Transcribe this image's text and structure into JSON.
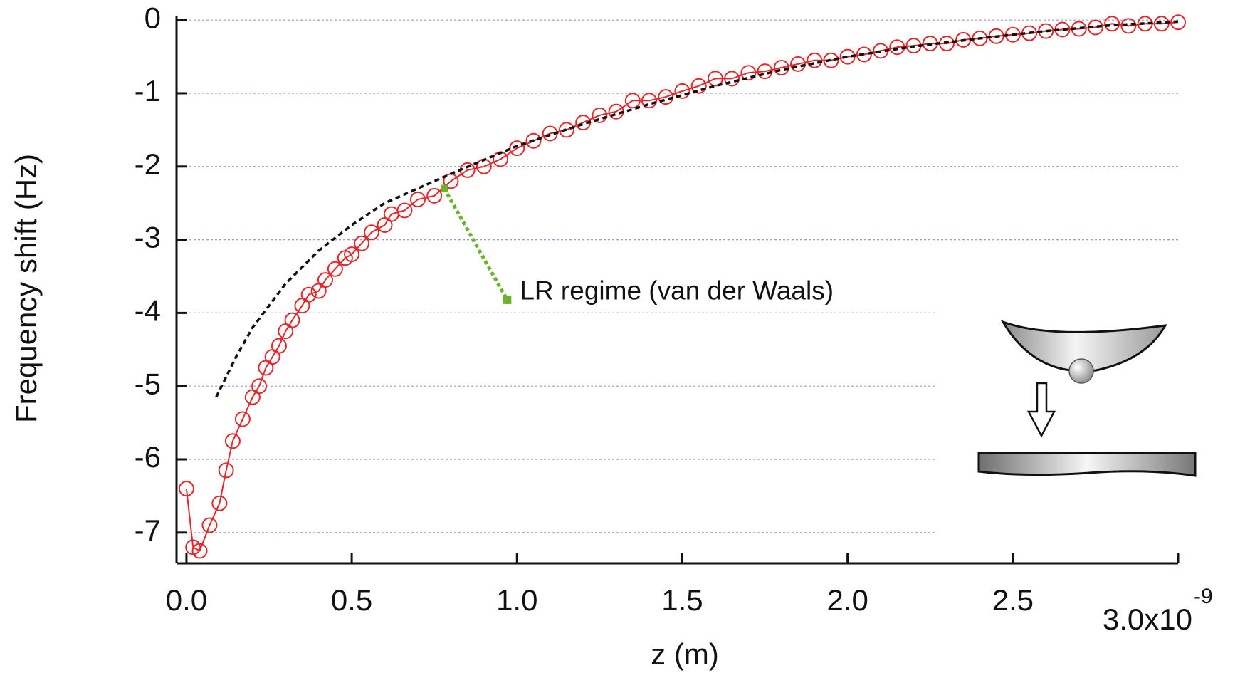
{
  "chart_data": {
    "type": "scatter",
    "x_label": "z (m)",
    "y_label": "Frequency shift (Hz)",
    "x_exponent": "-9",
    "annotation": "LR regime (van der Waals)",
    "color": "#e8262a",
    "fit_color": "#111111",
    "annotation_color": "#6ab42d",
    "grid": true,
    "grid_color": "#9999dd",
    "xlim": [
      -0.03,
      3.0
    ],
    "ylim": [
      -7.42,
      0.06
    ],
    "xticks": [
      {
        "value": 0,
        "label": "0.0"
      },
      0.5,
      {
        "value": 1,
        "label": "1.0"
      },
      1.5,
      {
        "value": 2,
        "label": "2.0"
      },
      2.5,
      {
        "value": 3,
        "label": "3.0x10"
      }
    ],
    "yticks": [
      0,
      -1,
      -2,
      -3,
      -4,
      -5,
      -6,
      -7
    ],
    "x": [
      0,
      0.02,
      0.04,
      0.07,
      0.1,
      0.12,
      0.14,
      0.17,
      0.2,
      0.22,
      0.24,
      0.26,
      0.28,
      0.3,
      0.32,
      0.35,
      0.37,
      0.4,
      0.42,
      0.45,
      0.48,
      0.5,
      0.53,
      0.56,
      0.6,
      0.62,
      0.66,
      0.7,
      0.75,
      0.8,
      0.85,
      0.9,
      0.95,
      1.0,
      1.05,
      1.1,
      1.15,
      1.2,
      1.25,
      1.3,
      1.35,
      1.4,
      1.45,
      1.5,
      1.55,
      1.6,
      1.65,
      1.7,
      1.75,
      1.8,
      1.85,
      1.9,
      1.95,
      2.0,
      2.05,
      2.1,
      2.15,
      2.2,
      2.25,
      2.3,
      2.35,
      2.4,
      2.45,
      2.5,
      2.55,
      2.6,
      2.65,
      2.7,
      2.75,
      2.8,
      2.85,
      2.9,
      2.95,
      3.0
    ],
    "values": [
      -6.4,
      -7.2,
      -7.25,
      -6.9,
      -6.6,
      -6.15,
      -5.75,
      -5.45,
      -5.15,
      -5.0,
      -4.75,
      -4.6,
      -4.45,
      -4.25,
      -4.1,
      -3.9,
      -3.75,
      -3.7,
      -3.55,
      -3.4,
      -3.25,
      -3.2,
      -3.05,
      -2.9,
      -2.8,
      -2.65,
      -2.6,
      -2.45,
      -2.4,
      -2.2,
      -2.05,
      -2.0,
      -1.9,
      -1.75,
      -1.65,
      -1.55,
      -1.5,
      -1.4,
      -1.3,
      -1.25,
      -1.1,
      -1.1,
      -1.05,
      -0.97,
      -0.9,
      -0.8,
      -0.8,
      -0.72,
      -0.7,
      -0.65,
      -0.6,
      -0.55,
      -0.55,
      -0.5,
      -0.47,
      -0.42,
      -0.37,
      -0.35,
      -0.32,
      -0.32,
      -0.27,
      -0.25,
      -0.22,
      -0.2,
      -0.18,
      -0.15,
      -0.13,
      -0.12,
      -0.1,
      -0.05,
      -0.08,
      -0.05,
      -0.05,
      -0.03
    ],
    "fit_x": [
      0.09,
      0.15,
      0.2,
      0.3,
      0.4,
      0.5,
      0.6,
      0.7,
      0.8,
      1.0,
      1.2,
      1.4,
      1.6,
      1.8,
      2.0,
      2.2,
      2.4,
      2.6,
      2.8,
      3.0
    ],
    "fit_values": [
      -5.15,
      -4.6,
      -4.2,
      -3.6,
      -3.15,
      -2.8,
      -2.5,
      -2.3,
      -2.1,
      -1.72,
      -1.42,
      -1.15,
      -0.9,
      -0.68,
      -0.5,
      -0.36,
      -0.25,
      -0.15,
      -0.07,
      -0.02
    ]
  }
}
